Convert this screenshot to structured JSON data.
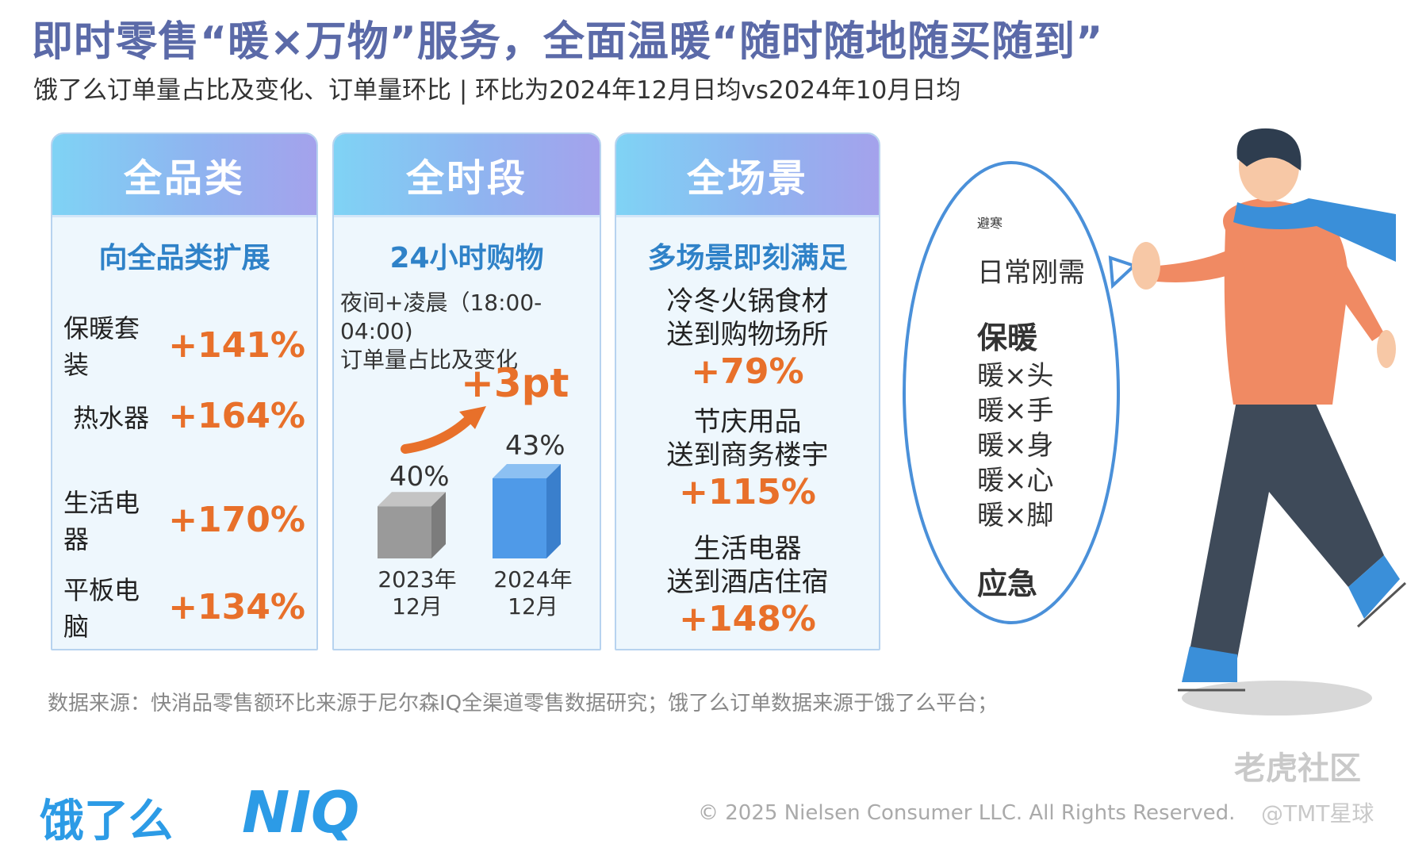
{
  "title": "即时零售“暖×万物”服务，全面温暖“随时随地随买随到”",
  "subtitle": "饿了么订单量占比及变化、订单量环比 | 环比为2024年12月日均vs2024年10月日均",
  "colors": {
    "accent": "#e8702a",
    "blue": "#2f82c8",
    "title": "#5b6aa8"
  },
  "cards": {
    "category": {
      "header": "全品类",
      "sub": "向全品类扩展",
      "items": [
        {
          "name": "保暖套装",
          "value": "+141%"
        },
        {
          "name": "热水器",
          "value": "+164%"
        },
        {
          "name": "生活电器",
          "value": "+170%"
        },
        {
          "name": "平板电脑",
          "value": "+134%"
        }
      ]
    },
    "time": {
      "header": "全时段",
      "sub": "24小时购物",
      "desc_line1": "夜间+凌晨（18:00-04:00)",
      "desc_line2": "订单量占比及变化",
      "change": "+3pt",
      "bars": [
        {
          "year_line1": "2023年",
          "year_line2": "12月",
          "value_label": "40%",
          "value": 40
        },
        {
          "year_line1": "2024年",
          "year_line2": "12月",
          "value_label": "43%",
          "value": 43
        }
      ]
    },
    "scene": {
      "header": "全场景",
      "sub": "多场景即刻满足",
      "items": [
        {
          "line1": "冷冬火锅食材",
          "line2": "送到购物场所",
          "value": "+79%"
        },
        {
          "line1": "节庆用品",
          "line2": "送到商务楼宇",
          "value": "+115%"
        },
        {
          "line1": "生活电器",
          "line2": "送到酒店住宿",
          "value": "+148%"
        }
      ]
    }
  },
  "bubble": {
    "head1": "避寒",
    "item1": "日常刚需",
    "head2": "保暖",
    "items2": [
      "暖×头",
      "暖×手",
      "暖×身",
      "暖×心",
      "暖×脚"
    ],
    "head3": "应急"
  },
  "footnote": "数据来源：快消品零售额环比来源于尼尔森IQ全渠道零售数据研究；饿了么订单数据来源于饿了么平台；",
  "copyright": "© 2025 Nielsen Consumer LLC. All Rights Reserved.",
  "watermark1": "老虎社区",
  "watermark2": "@TMT星球",
  "logo_ele": "饿了么",
  "logo_niq": "NIQ"
}
